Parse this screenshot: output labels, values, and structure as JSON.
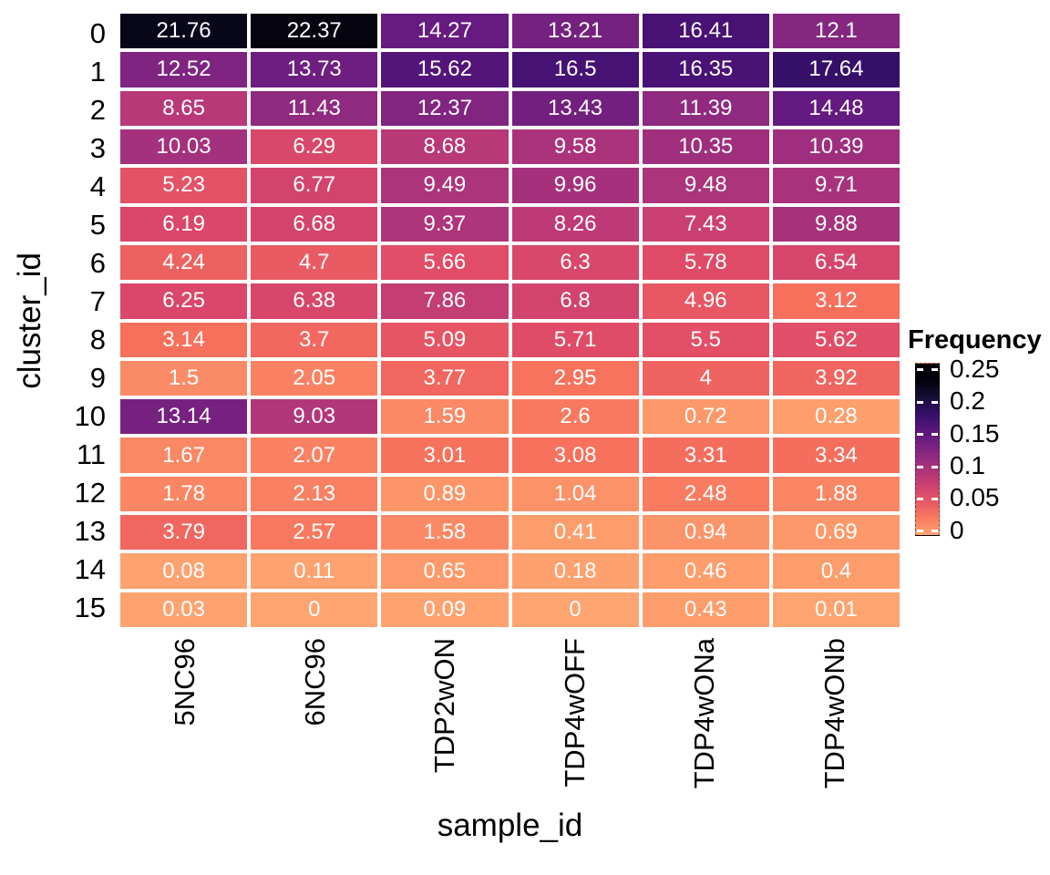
{
  "chart_data": {
    "type": "heatmap",
    "title": "",
    "xlabel": "sample_id",
    "ylabel": "cluster_id",
    "x_categories": [
      "5NC96",
      "6NC96",
      "TDP2wON",
      "TDP4wOFF",
      "TDP4wONa",
      "TDP4wONb"
    ],
    "y_categories": [
      "0",
      "1",
      "2",
      "3",
      "4",
      "5",
      "6",
      "7",
      "8",
      "9",
      "10",
      "11",
      "12",
      "13",
      "14",
      "15"
    ],
    "values_percent": [
      [
        21.76,
        22.37,
        14.27,
        13.21,
        16.41,
        12.1
      ],
      [
        12.52,
        13.73,
        15.62,
        16.5,
        16.35,
        17.64
      ],
      [
        8.65,
        11.43,
        12.37,
        13.43,
        11.39,
        14.48
      ],
      [
        10.03,
        6.29,
        8.68,
        9.58,
        10.35,
        10.39
      ],
      [
        5.23,
        6.77,
        9.49,
        9.96,
        9.48,
        9.71
      ],
      [
        6.19,
        6.68,
        9.37,
        8.26,
        7.43,
        9.88
      ],
      [
        4.24,
        4.7,
        5.66,
        6.3,
        5.78,
        6.54
      ],
      [
        6.25,
        6.38,
        7.86,
        6.8,
        4.96,
        3.12
      ],
      [
        3.14,
        3.7,
        5.09,
        5.71,
        5.5,
        5.62
      ],
      [
        1.5,
        2.05,
        3.77,
        2.95,
        4,
        3.92
      ],
      [
        13.14,
        9.03,
        1.59,
        2.6,
        0.72,
        0.28
      ],
      [
        1.67,
        2.07,
        3.01,
        3.08,
        3.31,
        3.34
      ],
      [
        1.78,
        2.13,
        0.89,
        1.04,
        2.48,
        1.88
      ],
      [
        3.79,
        2.57,
        1.58,
        0.41,
        0.94,
        0.69
      ],
      [
        0.08,
        0.11,
        0.65,
        0.18,
        0.46,
        0.4
      ],
      [
        0.03,
        0,
        0.09,
        0,
        0.43,
        0.01
      ]
    ],
    "legend": {
      "title": "Frequency",
      "ticks": [
        0.25,
        0.2,
        0.15,
        0.1,
        0.05,
        0
      ],
      "domain": [
        0,
        0.25
      ],
      "position": "right"
    },
    "colormap": {
      "name": "magma-reversed",
      "anchors": [
        "#000004",
        "#140e36",
        "#3b0f70",
        "#641a80",
        "#8c2981",
        "#b73779",
        "#de4968",
        "#f7705c",
        "#fe9f6d",
        "#fece91",
        "#fcfdbf"
      ],
      "t0": 0.81,
      "slope": 3.53
    },
    "colors": {
      "background": "#ffffff",
      "axis_text": "#000000",
      "cell_text": "#ffffff",
      "tile_gap": "#ffffff"
    },
    "grid": false
  }
}
